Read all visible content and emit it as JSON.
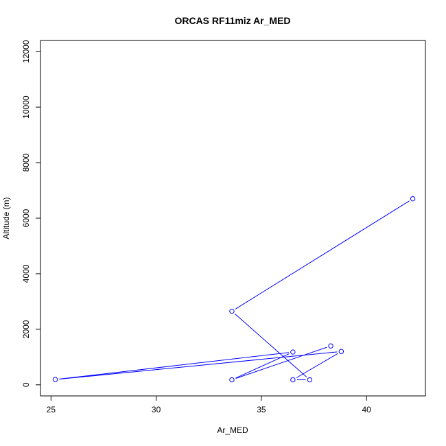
{
  "chart_data": {
    "type": "line",
    "title": "ORCAS RF11miz Ar_MED",
    "xlabel": "Ar_MED",
    "ylabel": "Altitude (m)",
    "xlim": [
      24.5,
      42.8
    ],
    "ylim": [
      -400,
      12400
    ],
    "x_ticks": [
      25,
      30,
      35,
      40
    ],
    "y_ticks": [
      0,
      2000,
      4000,
      6000,
      8000,
      10000,
      12000
    ],
    "grid": false,
    "legend": "none",
    "markers": "open-circle",
    "color": "#0000ff",
    "series": [
      {
        "x": [
          42.2,
          33.6,
          37.3,
          36.5,
          38.8,
          25.2,
          36.5,
          33.6,
          38.3
        ],
        "y": [
          6700,
          2650,
          180,
          180,
          1200,
          190,
          1180,
          180,
          1400
        ]
      }
    ]
  }
}
